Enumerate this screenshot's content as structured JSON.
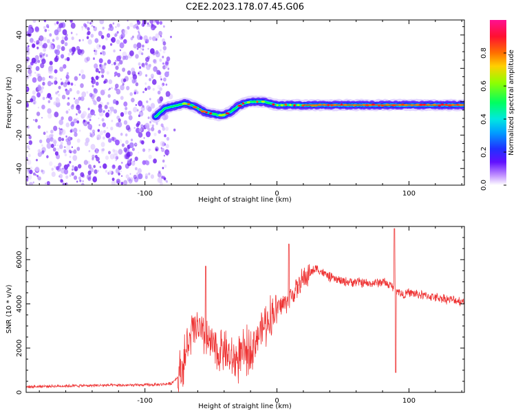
{
  "title": "C2E2.2023.178.07.45.G06",
  "chart_data": [
    {
      "type": "heatmap",
      "xlabel": "Height of straight line (km)",
      "ylabel": "Frequency (Hz)",
      "xlim": [
        -190,
        142
      ],
      "ylim": [
        -50,
        49
      ],
      "xticks": [
        -100,
        0,
        100
      ],
      "yticks": [
        -40,
        -20,
        0,
        20,
        40
      ],
      "noise_region_x": [
        -190,
        -82
      ],
      "signal_trace": {
        "x": [
          -92,
          -85,
          -80,
          -75,
          -70,
          -65,
          -60,
          -55,
          -50,
          -45,
          -40,
          -35,
          -30,
          -25,
          -20,
          -15,
          -10,
          -5,
          0,
          10,
          20,
          40,
          60,
          80,
          90,
          100,
          110,
          120,
          130,
          142
        ],
        "y": [
          -9,
          -4,
          -3,
          -2,
          -1,
          -2,
          -4,
          -6,
          -7,
          -8,
          -8,
          -6,
          -3,
          -1,
          0,
          0,
          0,
          -1,
          -2,
          -2,
          -2,
          -2,
          -2,
          -2,
          -2,
          -2,
          -2,
          -2,
          -2,
          -2
        ]
      },
      "colorbar": {
        "label": "Normalized spectral amplitude",
        "range": [
          0,
          1
        ],
        "ticks": [
          "0.0",
          "0.2",
          "0.4",
          "0.6",
          "0.8"
        ],
        "colors": [
          "#ffffff",
          "#a060ff",
          "#6010ff",
          "#2040ff",
          "#00d0ff",
          "#00ff60",
          "#b0ff00",
          "#ff8000",
          "#ff1030",
          "#ff1080"
        ]
      }
    },
    {
      "type": "line",
      "xlabel": "Height of straight line (km)",
      "ylabel": "SNR (10 * v/v)",
      "xlim": [
        -190,
        142
      ],
      "ylim": [
        0,
        7500
      ],
      "xticks": [
        -100,
        0,
        100
      ],
      "yticks": [
        0,
        2000,
        4000,
        6000
      ],
      "color": "#ee3333",
      "series": [
        {
          "name": "SNR",
          "x": [
            -190,
            -170,
            -150,
            -130,
            -110,
            -90,
            -80,
            -75,
            -70,
            -65,
            -60,
            -55,
            -50,
            -45,
            -40,
            -35,
            -30,
            -25,
            -20,
            -15,
            -10,
            -5,
            0,
            5,
            10,
            15,
            20,
            25,
            30,
            35,
            40,
            50,
            60,
            70,
            80,
            90,
            95,
            100,
            110,
            120,
            130,
            142
          ],
          "y": [
            250,
            280,
            300,
            320,
            320,
            350,
            400,
            700,
            1500,
            2600,
            3000,
            2300,
            2200,
            1800,
            2000,
            1400,
            1500,
            1700,
            2000,
            2500,
            3000,
            3400,
            3800,
            4000,
            4300,
            4700,
            5100,
            5400,
            5600,
            5400,
            5200,
            5000,
            5000,
            4900,
            5000,
            4700,
            4400,
            4500,
            4400,
            4300,
            4200,
            4100
          ]
        }
      ],
      "spikes": [
        {
          "x": -54,
          "y": 5700
        },
        {
          "x": 9,
          "y": 6700
        },
        {
          "x": 89,
          "y": 7400
        },
        {
          "x": 90,
          "y": 900
        }
      ]
    }
  ]
}
